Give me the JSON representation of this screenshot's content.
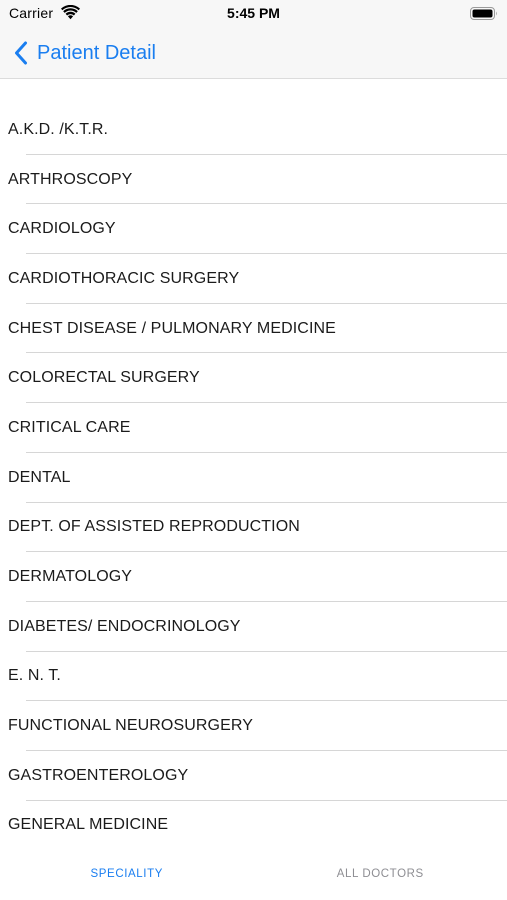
{
  "status_bar": {
    "carrier": "Carrier",
    "time": "5:45 PM",
    "wifi_icon": "wifi-icon",
    "battery_icon": "battery-icon"
  },
  "nav": {
    "back_label": "Patient Detail",
    "back_icon": "chevron-left-icon",
    "tint_color": "#1a7ef0"
  },
  "specialities": [
    "A.K.D. /K.T.R.",
    "ARTHROSCOPY",
    "CARDIOLOGY",
    "CARDIOTHORACIC SURGERY",
    "CHEST DISEASE / PULMONARY MEDICINE",
    "COLORECTAL SURGERY",
    "CRITICAL CARE",
    "DENTAL",
    "DEPT. OF ASSISTED REPRODUCTION",
    "DERMATOLOGY",
    "DIABETES/ ENDOCRINOLOGY",
    "E. N. T.",
    "FUNCTIONAL NEUROSURGERY",
    "GASTROENTEROLOGY",
    "GENERAL MEDICINE"
  ],
  "tabs": [
    {
      "label": "SPECIALITY",
      "active": true
    },
    {
      "label": "ALL DOCTORS",
      "active": false
    }
  ],
  "colors": {
    "active_tab": "#1a7ef0",
    "inactive_tab": "#8e8e93"
  }
}
